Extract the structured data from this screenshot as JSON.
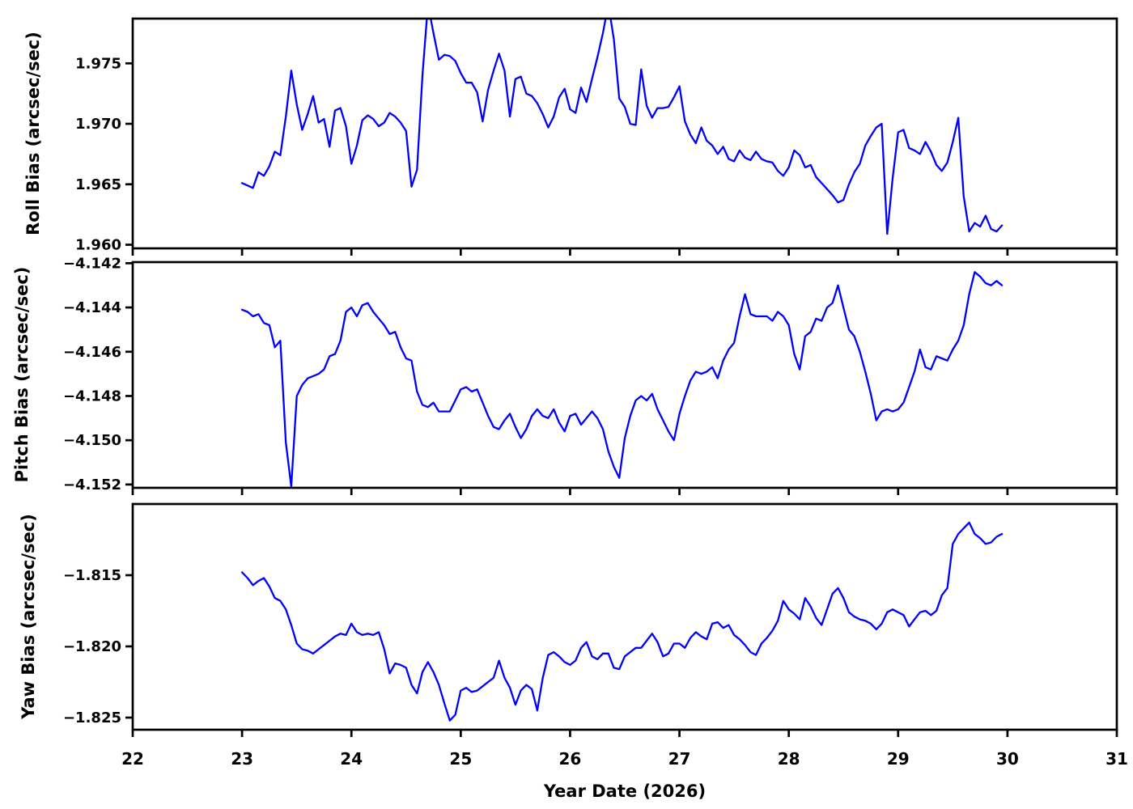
{
  "figure": {
    "xlabel": "Year Date (2026)",
    "xlim": [
      22,
      31
    ],
    "x_ticks": [
      22,
      23,
      24,
      25,
      26,
      27,
      28,
      29,
      30,
      31
    ],
    "x_tick_labels": [
      "22",
      "23",
      "24",
      "25",
      "26",
      "27",
      "28",
      "29",
      "30",
      "31"
    ],
    "line_color": "#0000ff",
    "axis_color": "#000000",
    "background_color": "#ffffff",
    "x_days": [
      23,
      23.05,
      23.1,
      23.15,
      23.2,
      23.25,
      23.3,
      23.35,
      23.4,
      23.45,
      23.5,
      23.55,
      23.6,
      23.65,
      23.7,
      23.75,
      23.8,
      23.85,
      23.9,
      23.95,
      24,
      24.05,
      24.1,
      24.15,
      24.2,
      24.25,
      24.3,
      24.35,
      24.4,
      24.45,
      24.5,
      24.55,
      24.6,
      24.65,
      24.7,
      24.75,
      24.8,
      24.85,
      24.9,
      24.95,
      25,
      25.05,
      25.1,
      25.15,
      25.2,
      25.25,
      25.3,
      25.35,
      25.4,
      25.45,
      25.5,
      25.55,
      25.6,
      25.65,
      25.7,
      25.75,
      25.8,
      25.85,
      25.9,
      25.95,
      26,
      26.05,
      26.1,
      26.15,
      26.2,
      26.25,
      26.3,
      26.35,
      26.4,
      26.45,
      26.5,
      26.55,
      26.6,
      26.65,
      26.7,
      26.75,
      26.8,
      26.85,
      26.9,
      26.95,
      27,
      27.05,
      27.1,
      27.15,
      27.2,
      27.25,
      27.3,
      27.35,
      27.4,
      27.45,
      27.5,
      27.55,
      27.6,
      27.65,
      27.7,
      27.75,
      27.8,
      27.85,
      27.9,
      27.95,
      28,
      28.05,
      28.1,
      28.15,
      28.2,
      28.25,
      28.3,
      28.35,
      28.4,
      28.45,
      28.5,
      28.55,
      28.6,
      28.65,
      28.7,
      28.75,
      28.8,
      28.85,
      28.9,
      28.95,
      29,
      29.05,
      29.1,
      29.15,
      29.2,
      29.25,
      29.3,
      29.35,
      29.4,
      29.45,
      29.5,
      29.55,
      29.6,
      29.65,
      29.7,
      29.75,
      29.8,
      29.85,
      29.9,
      29.95
    ]
  },
  "chart_data": [
    {
      "type": "line",
      "title": "",
      "panel": "roll",
      "ylabel": "Roll Bias (arcsec/sec)",
      "ylim": [
        1.9597,
        1.9787
      ],
      "y_ticks": [
        1.96,
        1.965,
        1.97,
        1.975
      ],
      "y_tick_labels": [
        "1.960",
        "1.965",
        "1.970",
        "1.975"
      ],
      "xlim": [
        22,
        31
      ],
      "grid": false,
      "legend": "none",
      "series": [
        {
          "name": "Roll Bias",
          "color": "#0000ff",
          "x_source": "figure.x_days",
          "y": [
            1.9651,
            1.9649,
            1.9647,
            1.966,
            1.9657,
            1.9665,
            1.9677,
            1.9674,
            1.9706,
            1.9744,
            1.9716,
            1.9695,
            1.9708,
            1.9723,
            1.9701,
            1.9704,
            1.9681,
            1.9711,
            1.9713,
            1.9698,
            1.9667,
            1.9682,
            1.9703,
            1.9707,
            1.9704,
            1.9698,
            1.9701,
            1.9709,
            1.9706,
            1.9701,
            1.9694,
            1.9648,
            1.9662,
            1.974,
            1.9799,
            1.9775,
            1.9753,
            1.9757,
            1.9756,
            1.9752,
            1.9742,
            1.9734,
            1.9734,
            1.9726,
            1.9702,
            1.9728,
            1.9744,
            1.9758,
            1.9744,
            1.9706,
            1.9737,
            1.9739,
            1.9725,
            1.9723,
            1.9717,
            1.9708,
            1.9697,
            1.9706,
            1.9722,
            1.9729,
            1.9712,
            1.9709,
            1.973,
            1.9718,
            1.9737,
            1.9755,
            1.9775,
            1.9799,
            1.977,
            1.9721,
            1.9714,
            1.97,
            1.9699,
            1.9745,
            1.9715,
            1.9705,
            1.9713,
            1.9713,
            1.9714,
            1.9722,
            1.9731,
            1.9702,
            1.9691,
            1.9684,
            1.9697,
            1.9686,
            1.9682,
            1.9675,
            1.9681,
            1.9671,
            1.9669,
            1.9678,
            1.9672,
            1.967,
            1.9677,
            1.9671,
            1.9669,
            1.9668,
            1.9661,
            1.9657,
            1.9664,
            1.9678,
            1.9674,
            1.9664,
            1.9666,
            1.9656,
            1.9651,
            1.9646,
            1.9641,
            1.9635,
            1.9637,
            1.965,
            1.966,
            1.9667,
            1.9682,
            1.969,
            1.9697,
            1.97,
            1.9609,
            1.9655,
            1.9693,
            1.9695,
            1.968,
            1.9678,
            1.9675,
            1.9685,
            1.9677,
            1.9666,
            1.9661,
            1.9668,
            1.9685,
            1.9705,
            1.964,
            1.9611,
            1.9618,
            1.9615,
            1.9624,
            1.9613,
            1.9611,
            1.9616
          ]
        }
      ]
    },
    {
      "type": "line",
      "title": "",
      "panel": "pitch",
      "ylabel": "Pitch Bias (arcsec/sec)",
      "ylim": [
        -4.15215,
        -4.14195
      ],
      "y_ticks": [
        -4.142,
        -4.144,
        -4.146,
        -4.148,
        -4.15,
        -4.152
      ],
      "y_tick_labels": [
        "−4.142",
        "−4.144",
        "−4.146",
        "−4.148",
        "−4.150",
        "−4.152"
      ],
      "xlim": [
        22,
        31
      ],
      "grid": false,
      "legend": "none",
      "series": [
        {
          "name": "Pitch Bias",
          "color": "#0000ff",
          "x_source": "figure.x_days",
          "y": [
            -4.1441,
            -4.1442,
            -4.1444,
            -4.1443,
            -4.1447,
            -4.1448,
            -4.1458,
            -4.1455,
            -4.1501,
            -4.1521,
            -4.148,
            -4.1475,
            -4.1472,
            -4.1471,
            -4.147,
            -4.1468,
            -4.1462,
            -4.1461,
            -4.1455,
            -4.1442,
            -4.144,
            -4.1444,
            -4.1439,
            -4.1438,
            -4.1442,
            -4.1445,
            -4.1448,
            -4.1452,
            -4.1451,
            -4.1458,
            -4.1463,
            -4.1464,
            -4.1478,
            -4.1484,
            -4.1485,
            -4.1483,
            -4.1487,
            -4.1487,
            -4.1487,
            -4.1482,
            -4.1477,
            -4.1476,
            -4.1478,
            -4.1477,
            -4.1483,
            -4.1489,
            -4.1494,
            -4.1495,
            -4.1491,
            -4.1488,
            -4.1494,
            -4.1499,
            -4.1495,
            -4.1489,
            -4.1486,
            -4.1489,
            -4.149,
            -4.1486,
            -4.1492,
            -4.1496,
            -4.1489,
            -4.1488,
            -4.1493,
            -4.149,
            -4.1487,
            -4.149,
            -4.1495,
            -4.1505,
            -4.1512,
            -4.1517,
            -4.1499,
            -4.1489,
            -4.1482,
            -4.148,
            -4.1482,
            -4.1479,
            -4.1486,
            -4.1491,
            -4.1496,
            -4.15,
            -4.1488,
            -4.148,
            -4.1473,
            -4.1469,
            -4.147,
            -4.1469,
            -4.1467,
            -4.1472,
            -4.1464,
            -4.1459,
            -4.1456,
            -4.1444,
            -4.1434,
            -4.1443,
            -4.1444,
            -4.1444,
            -4.1444,
            -4.1446,
            -4.1442,
            -4.1444,
            -4.1448,
            -4.1461,
            -4.1468,
            -4.1453,
            -4.1451,
            -4.1445,
            -4.1446,
            -4.144,
            -4.1438,
            -4.143,
            -4.144,
            -4.145,
            -4.1453,
            -4.146,
            -4.1469,
            -4.1479,
            -4.1491,
            -4.1487,
            -4.1486,
            -4.1487,
            -4.1486,
            -4.1483,
            -4.1476,
            -4.1469,
            -4.1459,
            -4.1467,
            -4.1468,
            -4.1462,
            -4.1463,
            -4.1464,
            -4.1459,
            -4.1455,
            -4.1448,
            -4.1434,
            -4.1424,
            -4.1426,
            -4.1429,
            -4.143,
            -4.1428,
            -4.143
          ]
        }
      ]
    },
    {
      "type": "line",
      "title": "",
      "panel": "yaw",
      "ylabel": "Yaw Bias (arcsec/sec)",
      "ylim": [
        -1.82585,
        -1.81
      ],
      "y_ticks": [
        -1.815,
        -1.82,
        -1.825
      ],
      "y_tick_labels": [
        "−1.815",
        "−1.820",
        "−1.825"
      ],
      "xlim": [
        22,
        31
      ],
      "grid": false,
      "legend": "none",
      "series": [
        {
          "name": "Yaw Bias",
          "color": "#0000ff",
          "x_source": "figure.x_days",
          "y": [
            -1.8148,
            -1.8152,
            -1.8157,
            -1.8154,
            -1.8152,
            -1.8158,
            -1.8166,
            -1.8168,
            -1.8174,
            -1.8185,
            -1.8198,
            -1.8202,
            -1.8203,
            -1.8205,
            -1.8202,
            -1.8199,
            -1.8196,
            -1.8193,
            -1.8191,
            -1.8192,
            -1.8184,
            -1.819,
            -1.8192,
            -1.8191,
            -1.8192,
            -1.819,
            -1.8202,
            -1.8219,
            -1.8212,
            -1.8213,
            -1.8215,
            -1.8227,
            -1.8233,
            -1.8218,
            -1.8211,
            -1.8218,
            -1.8227,
            -1.824,
            -1.8252,
            -1.8248,
            -1.8231,
            -1.8229,
            -1.8232,
            -1.8231,
            -1.8228,
            -1.8225,
            -1.8222,
            -1.821,
            -1.8222,
            -1.8229,
            -1.8241,
            -1.8231,
            -1.8227,
            -1.823,
            -1.8245,
            -1.8222,
            -1.8206,
            -1.8204,
            -1.8207,
            -1.8211,
            -1.8213,
            -1.821,
            -1.8201,
            -1.8197,
            -1.8207,
            -1.8209,
            -1.8205,
            -1.8205,
            -1.8215,
            -1.8216,
            -1.8207,
            -1.8204,
            -1.8201,
            -1.8201,
            -1.8196,
            -1.8191,
            -1.8197,
            -1.8207,
            -1.8205,
            -1.8198,
            -1.8198,
            -1.8201,
            -1.8194,
            -1.819,
            -1.8193,
            -1.8195,
            -1.8184,
            -1.8183,
            -1.8187,
            -1.8185,
            -1.8192,
            -1.8195,
            -1.8199,
            -1.8204,
            -1.8206,
            -1.8198,
            -1.8194,
            -1.8189,
            -1.8182,
            -1.8168,
            -1.8174,
            -1.8177,
            -1.8181,
            -1.8166,
            -1.8172,
            -1.818,
            -1.8185,
            -1.8174,
            -1.8163,
            -1.8159,
            -1.8166,
            -1.8176,
            -1.8179,
            -1.8181,
            -1.8182,
            -1.8184,
            -1.8188,
            -1.8184,
            -1.8176,
            -1.8174,
            -1.8176,
            -1.8178,
            -1.8186,
            -1.8181,
            -1.8176,
            -1.8175,
            -1.8178,
            -1.8175,
            -1.8164,
            -1.8159,
            -1.8128,
            -1.8121,
            -1.8117,
            -1.8113,
            -1.8121,
            -1.8124,
            -1.8128,
            -1.8127,
            -1.8123,
            -1.8121
          ]
        }
      ]
    }
  ]
}
